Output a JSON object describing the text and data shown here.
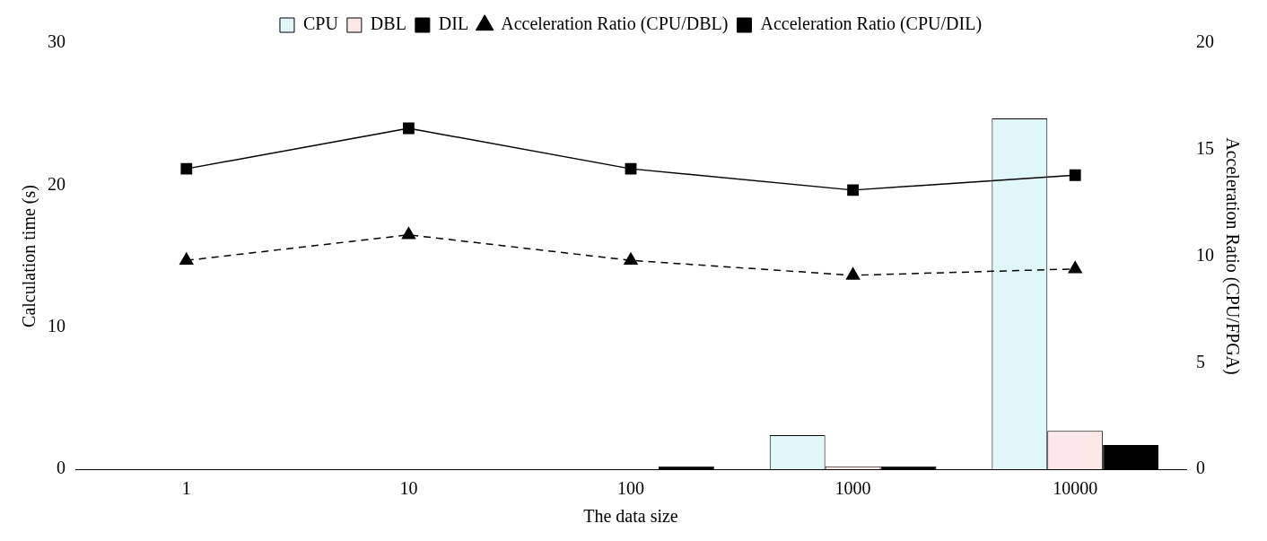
{
  "chart_data": {
    "type": "bar",
    "xlabel": "The data size",
    "ylabel": "Calculation time (s)",
    "y2label": "Acceleration Ratio (CPU/FPGA)",
    "categories": [
      "1",
      "10",
      "100",
      "1000",
      "10000"
    ],
    "series": [
      {
        "name": "CPU",
        "color": "#dff7f9",
        "values": [
          0,
          0,
          0,
          2.4,
          24.7
        ]
      },
      {
        "name": "DBL",
        "color": "#fde8e8",
        "values": [
          0,
          0,
          0,
          0.2,
          2.7
        ]
      },
      {
        "name": "DIL",
        "color": "#000000",
        "values": [
          0,
          0,
          0.2,
          0.2,
          1.7
        ]
      },
      {
        "name": "Acceleration Ratio (CPU/DBL)",
        "type": "line",
        "axis": "y2",
        "color": "#000000",
        "marker": "triangle",
        "line_style": "dashed",
        "values": [
          9.8,
          11.0,
          9.8,
          9.1,
          9.4
        ]
      },
      {
        "name": "Acceleration Ratio (CPU/DIL)",
        "type": "line",
        "axis": "y2",
        "color": "#000000",
        "marker": "square",
        "line_style": "solid",
        "values": [
          14.1,
          16.0,
          14.1,
          13.1,
          13.8
        ]
      }
    ],
    "ylim": [
      0,
      30
    ],
    "yticks": [
      0,
      10,
      20,
      30
    ],
    "y2lim": [
      0,
      20
    ],
    "y2ticks": [
      0,
      5,
      10,
      15,
      20
    ],
    "grid": false,
    "legend": "top"
  }
}
